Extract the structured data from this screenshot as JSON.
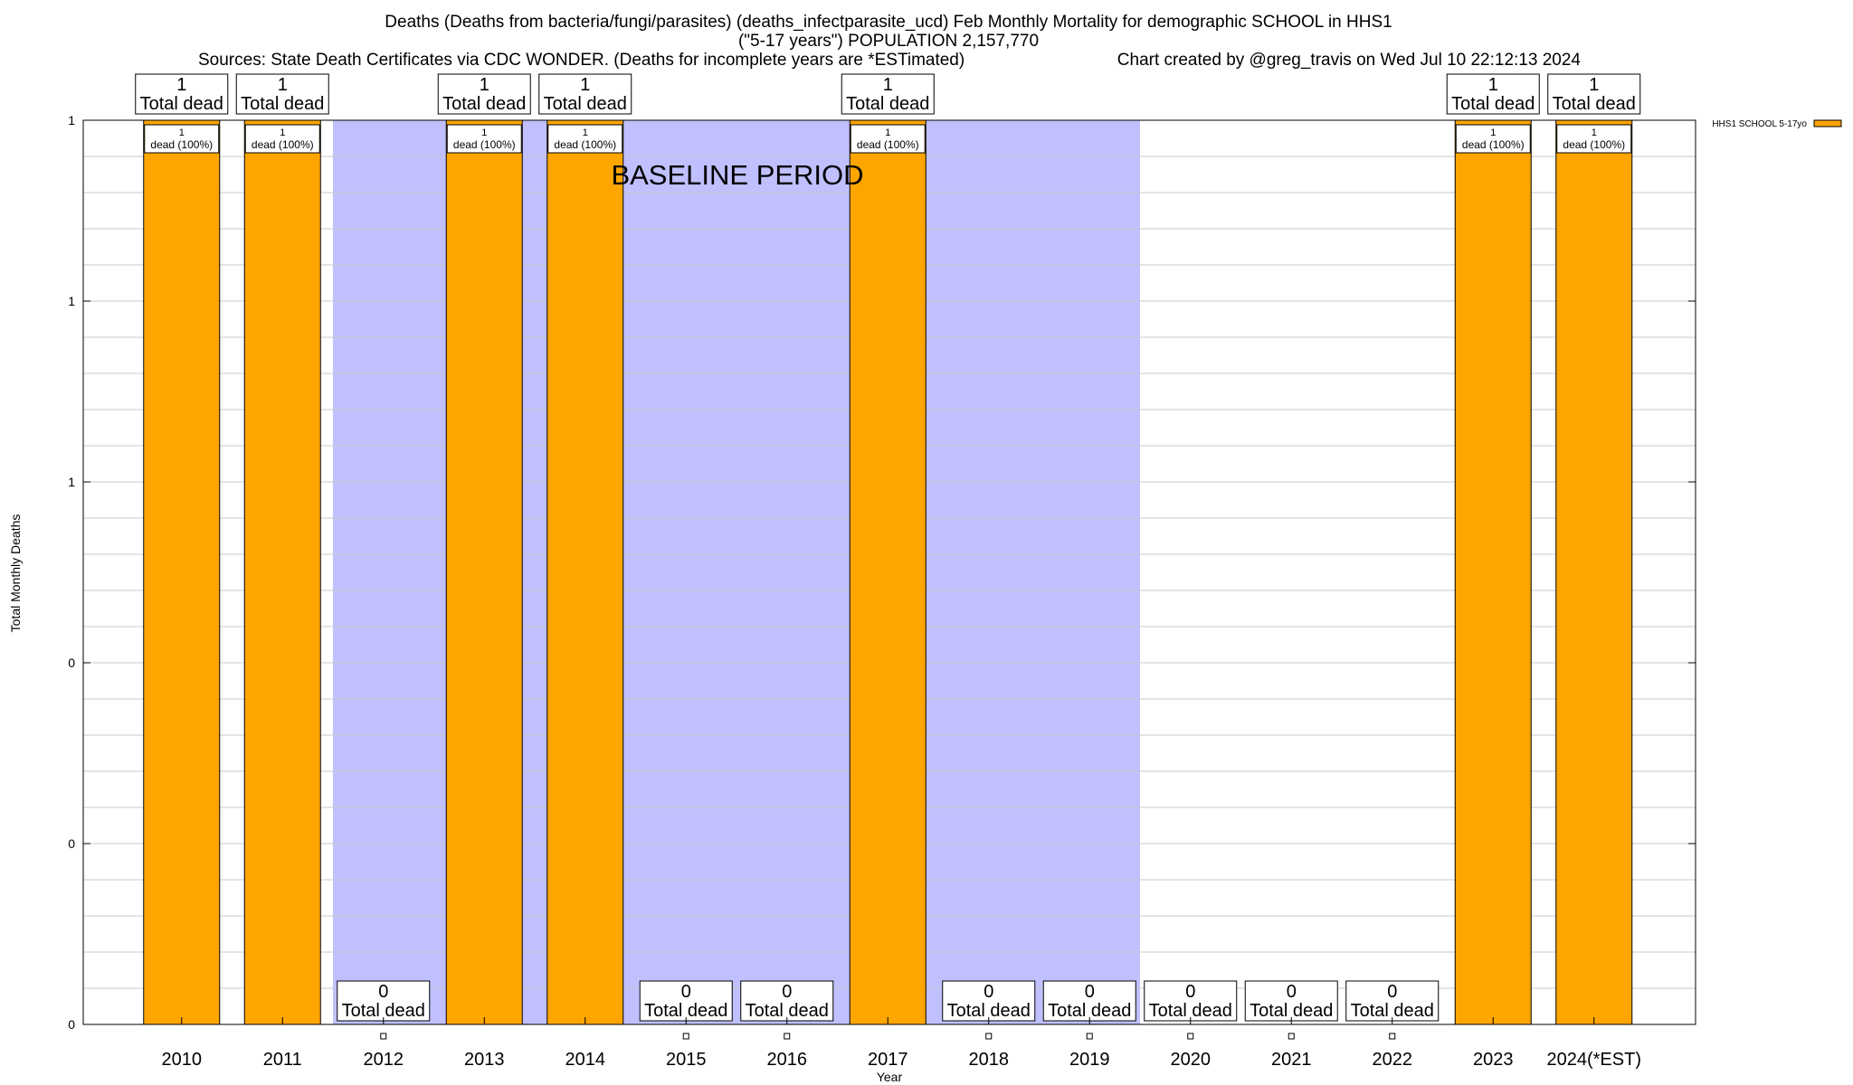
{
  "chart_data": {
    "type": "bar",
    "title_lines": [
      "Deaths (Deaths from bacteria/fungi/parasites) (deaths_infectparasite_ucd) Feb Monthly Mortality for demographic SCHOOL in HHS1",
      "(\"5-17 years\") POPULATION 2,157,770",
      "Sources: State Death Certificates via CDC WONDER. (Deaths for incomplete years are *ESTimated)"
    ],
    "credit": "Chart created by @greg_travis on Wed Jul 10 22:12:13 2024",
    "xlabel": "Year",
    "ylabel": "Total Monthly Deaths",
    "ylim": [
      0,
      1
    ],
    "ytick_values": [
      0,
      0.2,
      0.4,
      0.6,
      0.8,
      1
    ],
    "ytick_labels": [
      "0",
      "0",
      "0",
      "1",
      "1",
      "1"
    ],
    "categories": [
      "2010",
      "2011",
      "2012",
      "2013",
      "2014",
      "2015",
      "2016",
      "2017",
      "2018",
      "2019",
      "2020",
      "2021",
      "2022",
      "2023",
      "2024(*EST)"
    ],
    "series": [
      {
        "name": "HHS1 SCHOOL 5-17yo",
        "color": "#ffa500",
        "values": [
          1,
          1,
          0,
          1,
          1,
          0,
          0,
          1,
          0,
          0,
          0,
          0,
          0,
          1,
          1
        ]
      }
    ],
    "total_labels": {
      "numbers": [
        "1",
        "1",
        "0",
        "1",
        "1",
        "0",
        "0",
        "1",
        "0",
        "0",
        "0",
        "0",
        "0",
        "1",
        "1"
      ],
      "text": "Total dead"
    },
    "segment_labels": {
      "numbers": [
        "1",
        "1",
        "",
        "1",
        "1",
        "",
        "",
        "1",
        "",
        "",
        "",
        "",
        "",
        "1",
        "1"
      ],
      "text": "dead (100%)"
    },
    "baseline": {
      "label": "BASELINE PERIOD",
      "color": "#c0c0ff",
      "from_category": "2012",
      "to_category": "2019"
    },
    "grid": true,
    "legend_position": "top-right"
  }
}
